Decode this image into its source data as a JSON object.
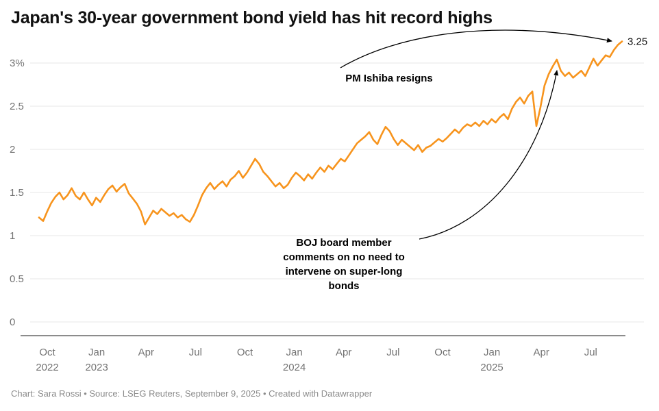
{
  "title": "Japan's 30-year government bond yield has hit record highs",
  "footer": "Chart: Sara Rossi • Source: LSEG Reuters, September 9, 2025 • Created with Datawrapper",
  "chart_data": {
    "type": "line",
    "title": "Japan's 30-year government bond yield has hit record highs",
    "series_name": "Japan 30-year government bond yield (%)",
    "unit": "%",
    "color": "#f7941d",
    "grid": true,
    "ylim": [
      0,
      3.3
    ],
    "x_range": [
      "Oct 2022",
      "Sep 2025"
    ],
    "t_max": 35.4,
    "values": [
      1.21,
      1.17,
      1.28,
      1.38,
      1.45,
      1.5,
      1.42,
      1.47,
      1.55,
      1.46,
      1.42,
      1.5,
      1.42,
      1.35,
      1.44,
      1.39,
      1.47,
      1.54,
      1.58,
      1.51,
      1.56,
      1.6,
      1.49,
      1.43,
      1.37,
      1.28,
      1.13,
      1.21,
      1.29,
      1.25,
      1.31,
      1.27,
      1.23,
      1.26,
      1.21,
      1.24,
      1.19,
      1.16,
      1.24,
      1.35,
      1.47,
      1.55,
      1.61,
      1.54,
      1.59,
      1.63,
      1.57,
      1.65,
      1.69,
      1.75,
      1.67,
      1.73,
      1.81,
      1.89,
      1.83,
      1.74,
      1.69,
      1.63,
      1.57,
      1.61,
      1.55,
      1.59,
      1.67,
      1.73,
      1.69,
      1.64,
      1.71,
      1.66,
      1.73,
      1.79,
      1.74,
      1.81,
      1.77,
      1.83,
      1.89,
      1.86,
      1.93,
      2.0,
      2.07,
      2.11,
      2.15,
      2.2,
      2.11,
      2.06,
      2.17,
      2.26,
      2.21,
      2.12,
      2.05,
      2.11,
      2.07,
      2.03,
      1.99,
      2.05,
      1.97,
      2.02,
      2.04,
      2.08,
      2.12,
      2.09,
      2.13,
      2.18,
      2.23,
      2.19,
      2.25,
      2.29,
      2.27,
      2.31,
      2.27,
      2.33,
      2.29,
      2.35,
      2.31,
      2.37,
      2.41,
      2.35,
      2.47,
      2.55,
      2.6,
      2.53,
      2.62,
      2.67,
      2.27,
      2.49,
      2.74,
      2.87,
      2.96,
      3.04,
      2.91,
      2.85,
      2.89,
      2.83,
      2.87,
      2.91,
      2.85,
      2.95,
      3.05,
      2.97,
      3.03,
      3.09,
      3.07,
      3.15,
      3.21,
      3.25
    ],
    "y_ticks": [
      {
        "v": 3,
        "label": "3%"
      },
      {
        "v": 2.5,
        "label": "2.5"
      },
      {
        "v": 2,
        "label": "2"
      },
      {
        "v": 1.5,
        "label": "1.5"
      },
      {
        "v": 1,
        "label": "1"
      },
      {
        "v": 0.5,
        "label": "0.5"
      },
      {
        "v": 0,
        "label": "0"
      }
    ],
    "x_ticks": [
      {
        "t": 0.5,
        "month": "Oct",
        "year": "2022"
      },
      {
        "t": 3.5,
        "month": "Jan",
        "year": "2023"
      },
      {
        "t": 6.5,
        "month": "Apr",
        "year": ""
      },
      {
        "t": 9.5,
        "month": "Jul",
        "year": ""
      },
      {
        "t": 12.5,
        "month": "Oct",
        "year": ""
      },
      {
        "t": 15.5,
        "month": "Jan",
        "year": "2024"
      },
      {
        "t": 18.5,
        "month": "Apr",
        "year": ""
      },
      {
        "t": 21.5,
        "month": "Jul",
        "year": ""
      },
      {
        "t": 24.5,
        "month": "Oct",
        "year": ""
      },
      {
        "t": 27.5,
        "month": "Jan",
        "year": "2025"
      },
      {
        "t": 30.5,
        "month": "Apr",
        "year": ""
      },
      {
        "t": 33.5,
        "month": "Jul",
        "year": ""
      }
    ],
    "end_label": "3.25",
    "annotations": [
      {
        "id": "pm-ishiba",
        "text": "PM Ishiba resigns",
        "points_to": {
          "t": 35.4,
          "v": 3.25
        }
      },
      {
        "id": "boj-comments",
        "lines": [
          "BOJ board member",
          "comments on no need to",
          "intervene on super-long",
          "bonds"
        ],
        "points_to": {
          "t": 31.4,
          "v": 3.04
        }
      }
    ]
  }
}
